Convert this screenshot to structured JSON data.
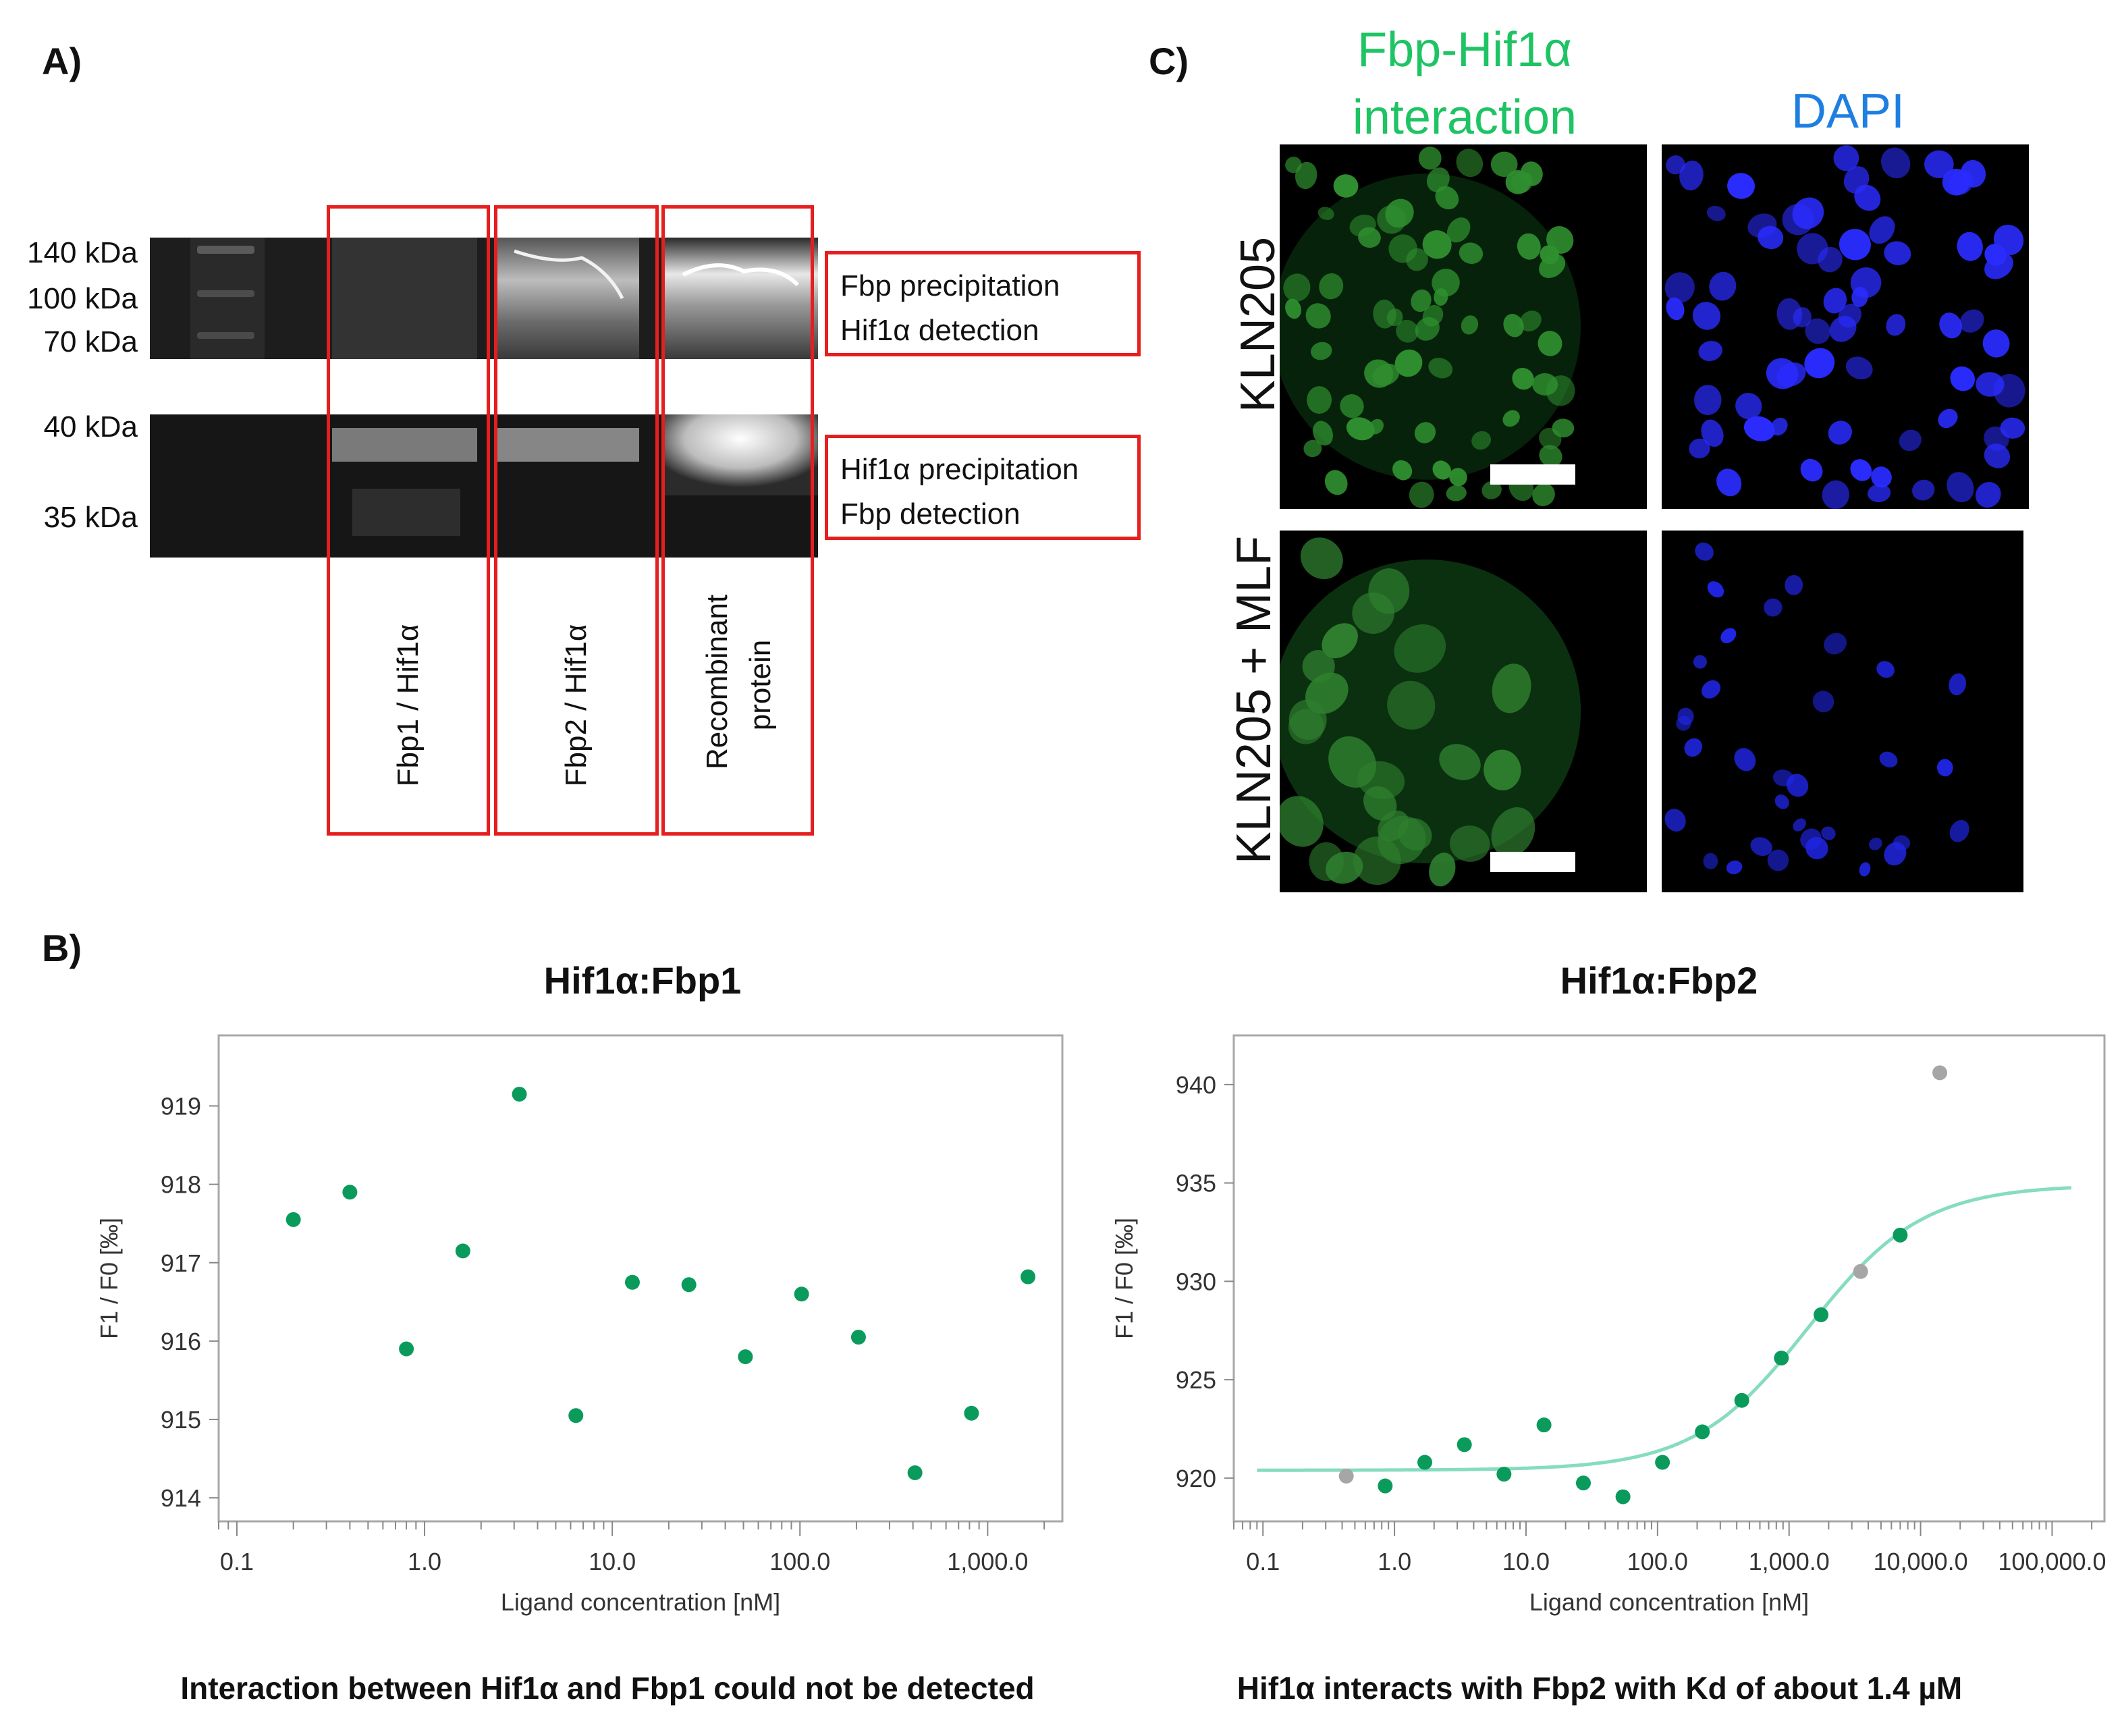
{
  "panel_letters": {
    "a": "A)",
    "b": "B)",
    "c": "C)"
  },
  "panel_a": {
    "mw_top": [
      "140 kDa",
      "100 kDa",
      "70 kDa"
    ],
    "mw_bottom": [
      "40 kDa",
      "35 kDa"
    ],
    "box_top": [
      "Fbp precipitation",
      "Hif1α detection"
    ],
    "box_bottom": [
      "Hif1α precipitation",
      "Fbp detection"
    ],
    "lanes": [
      "Fbp1 / Hif1α",
      "Fbp2 / Hif1α",
      "Recombinant",
      "protein"
    ],
    "box_color": "#e61e1e"
  },
  "panel_c": {
    "green_header": [
      "Fbp-Hif1α",
      "interaction"
    ],
    "blue_header": "DAPI",
    "row_labels": [
      "KLN205",
      "KLN205 + MLF"
    ],
    "green_color": "#1ec463",
    "blue_color": "#1f7fe0"
  },
  "chart_data": [
    {
      "type": "scatter",
      "title": "Hif1α:Fbp1",
      "xlabel": "Ligand concentration [nM]",
      "ylabel": "F1 / F0 [‰]",
      "xscale": "log",
      "xlim": [
        0.08,
        2500
      ],
      "ylim": [
        913.7,
        919.9
      ],
      "xticks": [
        0.1,
        1,
        10,
        100,
        1000
      ],
      "xtick_labels": [
        "0.1",
        "1.0",
        "10.0",
        "100.0",
        "1,000.0"
      ],
      "yticks": [
        914,
        915,
        916,
        917,
        918,
        919
      ],
      "points": [
        {
          "x": 0.2,
          "y": 917.55
        },
        {
          "x": 0.4,
          "y": 917.9
        },
        {
          "x": 0.8,
          "y": 915.9
        },
        {
          "x": 1.6,
          "y": 917.15
        },
        {
          "x": 3.2,
          "y": 919.15
        },
        {
          "x": 6.4,
          "y": 915.05
        },
        {
          "x": 12.8,
          "y": 916.75
        },
        {
          "x": 25.6,
          "y": 916.72
        },
        {
          "x": 51.2,
          "y": 915.8
        },
        {
          "x": 102,
          "y": 916.6
        },
        {
          "x": 205,
          "y": 916.05
        },
        {
          "x": 410,
          "y": 914.32
        },
        {
          "x": 820,
          "y": 915.08
        },
        {
          "x": 1640,
          "y": 916.82
        }
      ],
      "caption": "Interaction between Hif1α and Fbp1 could not be detected",
      "point_color": "#0a9b5c"
    },
    {
      "type": "scatter",
      "title": "Hif1α:Fbp2",
      "xlabel": "Ligand concentration [nM]",
      "ylabel": "F1 / F0 [‰]",
      "xscale": "log",
      "xlim": [
        0.06,
        250000
      ],
      "ylim": [
        917.8,
        942.5
      ],
      "xticks": [
        0.1,
        1,
        10,
        100,
        1000,
        10000,
        100000
      ],
      "xtick_labels": [
        "0.1",
        "1.0",
        "10.0",
        "100.0",
        "1,000.0",
        "10,000.0",
        "100,000.0"
      ],
      "yticks": [
        920,
        925,
        930,
        935,
        940
      ],
      "points": [
        {
          "x": 0.43,
          "y": 920.1,
          "excluded": true
        },
        {
          "x": 0.85,
          "y": 919.6
        },
        {
          "x": 1.7,
          "y": 920.8
        },
        {
          "x": 3.4,
          "y": 921.7
        },
        {
          "x": 6.8,
          "y": 920.2
        },
        {
          "x": 13.7,
          "y": 922.7
        },
        {
          "x": 27.3,
          "y": 919.75
        },
        {
          "x": 54.6,
          "y": 919.05
        },
        {
          "x": 109,
          "y": 920.8
        },
        {
          "x": 219,
          "y": 922.35
        },
        {
          "x": 437,
          "y": 923.95
        },
        {
          "x": 874,
          "y": 926.1
        },
        {
          "x": 1750,
          "y": 928.3
        },
        {
          "x": 3500,
          "y": 930.5,
          "excluded": true
        },
        {
          "x": 7000,
          "y": 932.35
        },
        {
          "x": 14000,
          "y": 940.6,
          "excluded": true
        }
      ],
      "fit": {
        "model": "Kd",
        "bottom": 920.4,
        "top": 934.9,
        "kd_nM": 1400,
        "x_range": [
          0.09,
          140000
        ]
      },
      "caption": "Hif1α interacts with Fbp2 with Kd of about 1.4 µM",
      "point_color": "#0a9b5c",
      "excluded_color": "#a6a6a6",
      "fit_color": "#86dcc0"
    }
  ]
}
